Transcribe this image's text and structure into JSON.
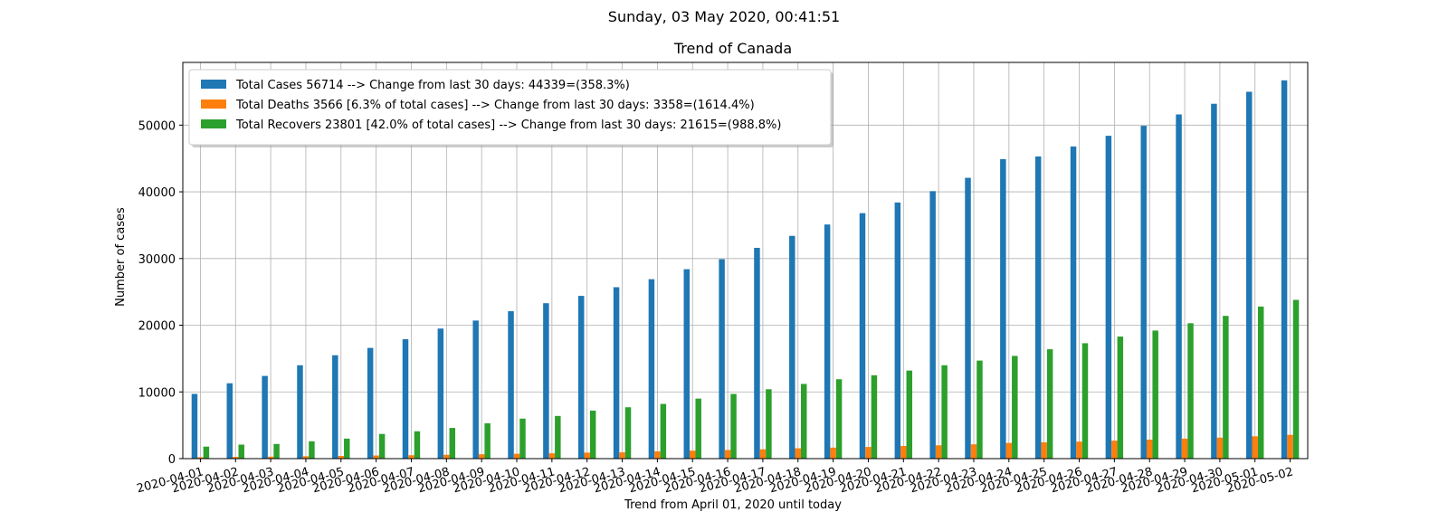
{
  "suptitle": "Sunday, 03 May 2020, 00:41:51",
  "chart_data": {
    "type": "bar",
    "title": "Trend of Canada",
    "xlabel": "Trend from April 01, 2020 until today",
    "ylabel": "Number of cases",
    "ylim": [
      0,
      59400
    ],
    "yticks": [
      0,
      10000,
      20000,
      30000,
      40000,
      50000
    ],
    "grid": true,
    "legend_position": "top-left",
    "categories": [
      "2020-04-01",
      "2020-04-02",
      "2020-04-03",
      "2020-04-04",
      "2020-04-05",
      "2020-04-06",
      "2020-04-07",
      "2020-04-08",
      "2020-04-09",
      "2020-04-10",
      "2020-04-11",
      "2020-04-12",
      "2020-04-13",
      "2020-04-14",
      "2020-04-15",
      "2020-04-16",
      "2020-04-17",
      "2020-04-18",
      "2020-04-19",
      "2020-04-20",
      "2020-04-21",
      "2020-04-22",
      "2020-04-23",
      "2020-04-24",
      "2020-04-25",
      "2020-04-26",
      "2020-04-27",
      "2020-04-28",
      "2020-04-29",
      "2020-04-30",
      "2020-05-01",
      "2020-05-02"
    ],
    "series": [
      {
        "name": "Total Cases 56714 --> Change from last 30 days: 44339=(358.3%)",
        "color": "#1f77b4",
        "values": [
          9700,
          11300,
          12400,
          14000,
          15500,
          16600,
          17900,
          19500,
          20700,
          22100,
          23300,
          24400,
          25700,
          26900,
          28400,
          29900,
          31600,
          33400,
          35100,
          36800,
          38400,
          40100,
          42100,
          44900,
          45300,
          46800,
          48400,
          49900,
          51600,
          53200,
          55000,
          56714
        ]
      },
      {
        "name": "Total Deaths 3566 [6.3% of total cases] --> Change from last 30 days: 3358=(1614.4%)",
        "color": "#ff7f0e",
        "values": [
          208,
          260,
          300,
          360,
          400,
          470,
          510,
          580,
          660,
          730,
          800,
          900,
          950,
          1100,
          1200,
          1300,
          1400,
          1550,
          1650,
          1750,
          1900,
          2000,
          2150,
          2350,
          2450,
          2550,
          2700,
          2850,
          3000,
          3150,
          3350,
          3566
        ]
      },
      {
        "name": "Total Recovers 23801 [42.0% of total cases] --> Change from last 30 days: 21615=(988.8%)",
        "color": "#2ca02c",
        "values": [
          1800,
          2100,
          2200,
          2600,
          3000,
          3700,
          4100,
          4600,
          5300,
          6000,
          6400,
          7200,
          7700,
          8200,
          9000,
          9700,
          10400,
          11200,
          11900,
          12500,
          13200,
          14000,
          14700,
          15400,
          16400,
          17300,
          18300,
          19200,
          20300,
          21400,
          22800,
          23801
        ]
      }
    ]
  }
}
